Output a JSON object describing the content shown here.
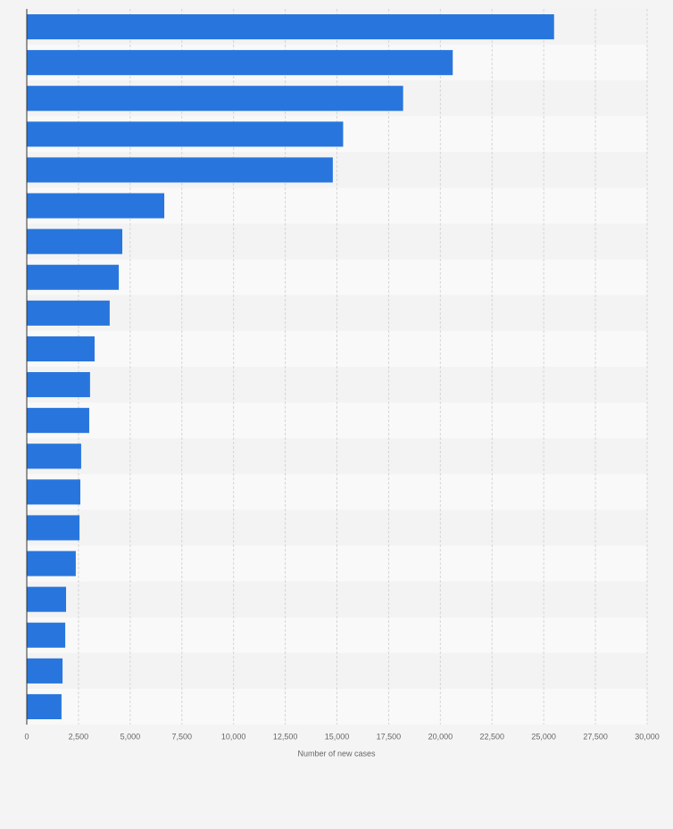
{
  "chart_data": {
    "type": "bar",
    "orientation": "horizontal",
    "xlabel": "Number of new cases",
    "categories": [
      null,
      null,
      null,
      null,
      null,
      null,
      null,
      null,
      null,
      null,
      null,
      null,
      null,
      null,
      null,
      null,
      null,
      null,
      null,
      null
    ],
    "values": [
      25500,
      20600,
      18200,
      15300,
      14800,
      6650,
      4620,
      4450,
      4010,
      3280,
      3060,
      3020,
      2630,
      2590,
      2550,
      2370,
      1900,
      1860,
      1730,
      1680
    ],
    "color": "#2876dd",
    "xlim": [
      0,
      30000
    ],
    "xticks": [
      0,
      {
        "value": 2500,
        "label": "2,500"
      },
      {
        "value": 5000,
        "label": "5,000"
      },
      {
        "value": 7500,
        "label": "7,500"
      },
      {
        "value": 10000,
        "label": "10,000"
      },
      {
        "value": 12500,
        "label": "12,500"
      },
      {
        "value": 15000,
        "label": "15,000"
      },
      {
        "value": 17500,
        "label": "17,500"
      },
      {
        "value": 20000,
        "label": "20,000"
      },
      {
        "value": 22500,
        "label": "22,500"
      },
      {
        "value": 25000,
        "label": "25,000"
      },
      {
        "value": 27500,
        "label": "27,500"
      },
      {
        "value": 30000,
        "label": "30,000"
      }
    ],
    "grid": true
  }
}
